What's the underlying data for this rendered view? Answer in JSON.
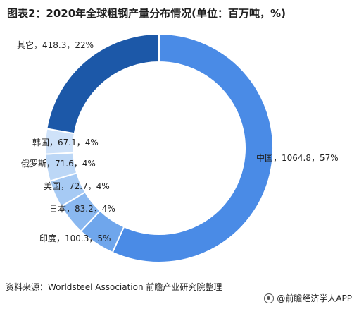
{
  "title": "图表2：2020年全球粗钢产量分布情况(单位：百万吨，%)",
  "source": "资料来源：Worldsteel Association 前瞻产业研究院整理",
  "credit": "@前瞻经济学人APP",
  "colors": {
    "中国": "#4a8be6",
    "印度": "#6fa6ec",
    "日本": "#8ab8f0",
    "美国": "#a6caf4",
    "俄罗斯": "#bcd7f6",
    "韩国": "#cfe2f9",
    "其它": "#1c58a8"
  },
  "chart_data": {
    "type": "pie",
    "donut": true,
    "title": "图表2：2020年全球粗钢产量分布情况(单位：百万吨，%)",
    "unit": "百万吨",
    "slices": [
      {
        "name": "中国",
        "value": 1064.8,
        "percent": 57,
        "label": "中国，1064.8，57%"
      },
      {
        "name": "印度",
        "value": 100.3,
        "percent": 5,
        "label": "印度，100.3，5%"
      },
      {
        "name": "日本",
        "value": 83.2,
        "percent": 4,
        "label": "日本，83.2，4%"
      },
      {
        "name": "美国",
        "value": 72.7,
        "percent": 4,
        "label": "美国，72.7，4%"
      },
      {
        "name": "俄罗斯",
        "value": 71.6,
        "percent": 4,
        "label": "俄罗斯，71.6，4%"
      },
      {
        "name": "韩国",
        "value": 67.1,
        "percent": 4,
        "label": "韩国，67.1，4%"
      },
      {
        "name": "其它",
        "value": 418.3,
        "percent": 22,
        "label": "其它，418.3，22%"
      }
    ]
  }
}
